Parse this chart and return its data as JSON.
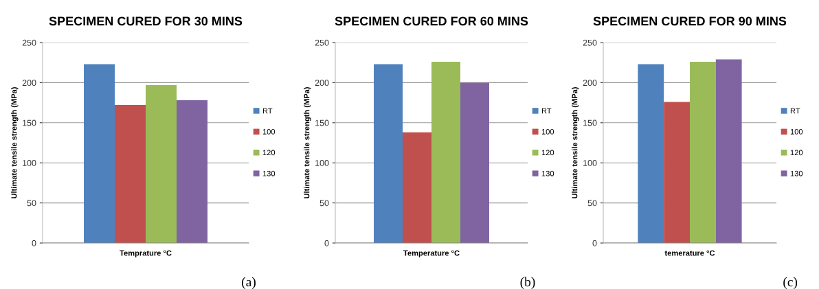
{
  "chart_data": [
    {
      "type": "bar",
      "title": "SPECIMEN CURED FOR 30 MINS",
      "xlabel": "Temprature °C",
      "ylabel": "Ultimate tensile strength (MPa)",
      "categories": [
        null
      ],
      "ylim": [
        0,
        250
      ],
      "yticks": [
        0,
        50,
        100,
        150,
        200,
        250
      ],
      "grid": "y",
      "legend": "right",
      "annotations": [
        "(a)"
      ],
      "series": [
        {
          "name": "RT",
          "color": "#4f81bd",
          "values": [
            223
          ]
        },
        {
          "name": "100",
          "color": "#c0504d",
          "values": [
            172
          ]
        },
        {
          "name": "120",
          "color": "#9bbb59",
          "values": [
            197
          ]
        },
        {
          "name": "130",
          "color": "#8064a2",
          "values": [
            178
          ]
        }
      ]
    },
    {
      "type": "bar",
      "title": "SPECIMEN CURED FOR 60 MINS",
      "xlabel": "Temperature °C",
      "ylabel": "Ultimate tensile strength (MPa)",
      "categories": [
        null
      ],
      "ylim": [
        0,
        250
      ],
      "yticks": [
        0,
        50,
        100,
        150,
        200,
        250
      ],
      "grid": "y",
      "legend": "right",
      "annotations": [
        "(b)"
      ],
      "series": [
        {
          "name": "RT",
          "color": "#4f81bd",
          "values": [
            223
          ]
        },
        {
          "name": "100",
          "color": "#c0504d",
          "values": [
            138
          ]
        },
        {
          "name": "120",
          "color": "#9bbb59",
          "values": [
            226
          ]
        },
        {
          "name": "130",
          "color": "#8064a2",
          "values": [
            200
          ]
        }
      ]
    },
    {
      "type": "bar",
      "title": "SPECIMEN CURED FOR 90 MINS",
      "xlabel": "temerature °C",
      "ylabel": "Ultimate tensile strength (MPa)",
      "categories": [
        null
      ],
      "ylim": [
        0,
        250
      ],
      "yticks": [
        0,
        50,
        100,
        150,
        200,
        250
      ],
      "grid": "y",
      "legend": "right",
      "annotations": [
        "(c)"
      ],
      "series": [
        {
          "name": "RT",
          "color": "#4f81bd",
          "values": [
            223
          ]
        },
        {
          "name": "100",
          "color": "#c0504d",
          "values": [
            176
          ]
        },
        {
          "name": "120",
          "color": "#9bbb59",
          "values": [
            226
          ]
        },
        {
          "name": "130",
          "color": "#8064a2",
          "values": [
            229
          ]
        }
      ]
    }
  ]
}
